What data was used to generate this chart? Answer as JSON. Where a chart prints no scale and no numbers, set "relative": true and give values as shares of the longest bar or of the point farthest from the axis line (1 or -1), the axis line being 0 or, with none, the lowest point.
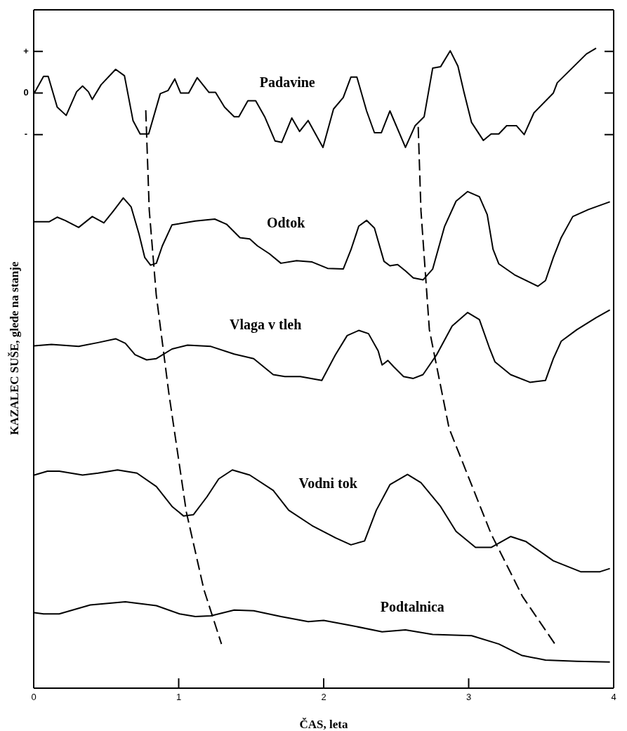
{
  "chart_data": {
    "type": "line",
    "relative": true,
    "xlabel": "ČAS, leta",
    "ylabel": "KAZALEC SUŠE, glede na stanje",
    "xlim": [
      0,
      4
    ],
    "xticks": [
      0,
      1,
      2,
      3,
      4
    ],
    "legend": false,
    "marker": "none",
    "line_style": "solid",
    "annotations": [
      "+",
      "0",
      "-"
    ],
    "series": [
      {
        "name": "Padavine",
        "color": "#000000",
        "x": [
          0.004,
          0.068,
          0.1,
          0.162,
          0.224,
          0.296,
          0.337,
          0.377,
          0.404,
          0.465,
          0.565,
          0.626,
          0.685,
          0.734,
          0.793,
          0.873,
          0.927,
          0.973,
          1.013,
          1.069,
          1.128,
          1.209,
          1.254,
          1.316,
          1.383,
          1.415,
          1.477,
          1.531,
          1.593,
          1.665,
          1.711,
          1.78,
          1.834,
          1.893,
          1.995,
          2.068,
          2.135,
          2.188,
          2.229,
          2.296,
          2.35,
          2.398,
          2.457,
          2.564,
          2.631,
          2.693,
          2.752,
          2.806,
          2.873,
          2.926,
          2.967,
          3.02,
          3.101,
          3.155,
          3.208,
          3.262,
          3.329,
          3.383,
          3.45,
          3.584,
          3.611,
          3.812,
          3.879
        ],
        "values": [
          0.93,
          0.956,
          0.956,
          0.908,
          0.895,
          0.932,
          0.941,
          0.932,
          0.92,
          0.943,
          0.967,
          0.957,
          0.887,
          0.866,
          0.866,
          0.929,
          0.934,
          0.952,
          0.93,
          0.93,
          0.954,
          0.931,
          0.931,
          0.908,
          0.893,
          0.893,
          0.918,
          0.918,
          0.893,
          0.855,
          0.853,
          0.891,
          0.87,
          0.887,
          0.845,
          0.905,
          0.923,
          0.955,
          0.955,
          0.902,
          0.868,
          0.868,
          0.902,
          0.845,
          0.879,
          0.893,
          0.969,
          0.971,
          0.996,
          0.972,
          0.932,
          0.884,
          0.856,
          0.866,
          0.866,
          0.879,
          0.879,
          0.865,
          0.899,
          0.93,
          0.946,
          0.991,
          1.0
        ]
      },
      {
        "name": "Odtok",
        "color": "#000000",
        "x": [
          0.004,
          0.108,
          0.162,
          0.216,
          0.31,
          0.404,
          0.484,
          0.551,
          0.618,
          0.672,
          0.726,
          0.766,
          0.806,
          0.846,
          0.887,
          0.954,
          1.115,
          1.249,
          1.33,
          1.423,
          1.49,
          1.544,
          1.625,
          1.705,
          1.813,
          1.92,
          2.027,
          2.135,
          2.188,
          2.242,
          2.296,
          2.35,
          2.416,
          2.457,
          2.51,
          2.564,
          2.618,
          2.685,
          2.752,
          2.833,
          2.913,
          2.993,
          3.074,
          3.128,
          3.168,
          3.208,
          3.316,
          3.477,
          3.53,
          3.584,
          3.638,
          3.718,
          3.826,
          3.974
        ],
        "values": [
          0.729,
          0.729,
          0.736,
          0.731,
          0.72,
          0.737,
          0.727,
          0.746,
          0.766,
          0.752,
          0.71,
          0.673,
          0.661,
          0.664,
          0.691,
          0.724,
          0.73,
          0.733,
          0.725,
          0.704,
          0.702,
          0.691,
          0.679,
          0.664,
          0.668,
          0.666,
          0.656,
          0.655,
          0.685,
          0.722,
          0.731,
          0.719,
          0.667,
          0.66,
          0.662,
          0.652,
          0.641,
          0.638,
          0.655,
          0.721,
          0.761,
          0.776,
          0.768,
          0.74,
          0.686,
          0.663,
          0.646,
          0.628,
          0.637,
          0.673,
          0.704,
          0.737,
          0.748,
          0.76
        ]
      },
      {
        "name": "Vlaga v tleh",
        "color": "#000000",
        "x": [
          0.004,
          0.122,
          0.31,
          0.444,
          0.565,
          0.632,
          0.699,
          0.779,
          0.846,
          0.954,
          1.061,
          1.222,
          1.383,
          1.517,
          1.652,
          1.732,
          1.839,
          1.987,
          2.081,
          2.162,
          2.242,
          2.309,
          2.376,
          2.403,
          2.443,
          2.484,
          2.551,
          2.618,
          2.685,
          2.779,
          2.886,
          2.993,
          3.074,
          3.141,
          3.181,
          3.289,
          3.423,
          3.53,
          3.584,
          3.638,
          3.745,
          3.879,
          3.974
        ],
        "values": [
          0.535,
          0.537,
          0.534,
          0.54,
          0.546,
          0.539,
          0.521,
          0.513,
          0.515,
          0.53,
          0.536,
          0.534,
          0.522,
          0.515,
          0.49,
          0.487,
          0.487,
          0.481,
          0.521,
          0.551,
          0.559,
          0.554,
          0.527,
          0.505,
          0.512,
          0.502,
          0.487,
          0.484,
          0.49,
          0.521,
          0.566,
          0.587,
          0.576,
          0.533,
          0.51,
          0.49,
          0.478,
          0.481,
          0.515,
          0.542,
          0.56,
          0.579,
          0.591
        ]
      },
      {
        "name": "Vodni tok",
        "color": "#000000",
        "x": [
          0.004,
          0.095,
          0.176,
          0.337,
          0.444,
          0.578,
          0.712,
          0.846,
          0.954,
          1.034,
          1.101,
          1.195,
          1.276,
          1.37,
          1.49,
          1.652,
          1.759,
          1.92,
          2.081,
          2.188,
          2.282,
          2.363,
          2.457,
          2.578,
          2.671,
          2.806,
          2.913,
          3.047,
          3.155,
          3.289,
          3.396,
          3.584,
          3.772,
          3.906,
          3.974
        ],
        "values": [
          0.333,
          0.339,
          0.339,
          0.333,
          0.336,
          0.341,
          0.336,
          0.315,
          0.284,
          0.269,
          0.271,
          0.299,
          0.327,
          0.341,
          0.333,
          0.309,
          0.278,
          0.254,
          0.235,
          0.224,
          0.23,
          0.278,
          0.318,
          0.334,
          0.321,
          0.284,
          0.245,
          0.22,
          0.22,
          0.237,
          0.229,
          0.199,
          0.182,
          0.182,
          0.187
        ]
      },
      {
        "name": "Podtalnica",
        "color": "#000000",
        "x": [
          0.004,
          0.068,
          0.176,
          0.39,
          0.632,
          0.846,
          1.007,
          1.115,
          1.222,
          1.383,
          1.517,
          1.705,
          1.893,
          2.0,
          2.188,
          2.403,
          2.564,
          2.752,
          3.02,
          3.208,
          3.369,
          3.53,
          3.745,
          3.974
        ],
        "values": [
          0.118,
          0.116,
          0.116,
          0.13,
          0.135,
          0.129,
          0.116,
          0.112,
          0.113,
          0.122,
          0.121,
          0.112,
          0.104,
          0.106,
          0.098,
          0.088,
          0.091,
          0.084,
          0.082,
          0.069,
          0.051,
          0.044,
          0.042,
          0.041
        ]
      },
      {
        "type": "line",
        "line_style": "dashed",
        "color": "#000000",
        "x": [
          0.773,
          0.797,
          0.845,
          0.932,
          1.053,
          1.174,
          1.295
        ],
        "values": [
          0.903,
          0.747,
          0.615,
          0.461,
          0.275,
          0.154,
          0.069
        ]
      },
      {
        "type": "line",
        "line_style": "dashed",
        "color": "#000000",
        "x": [
          2.652,
          2.671,
          2.729,
          2.865,
          3.155,
          3.372,
          3.604
        ],
        "values": [
          0.877,
          0.746,
          0.56,
          0.406,
          0.241,
          0.143,
          0.066
        ]
      }
    ]
  }
}
